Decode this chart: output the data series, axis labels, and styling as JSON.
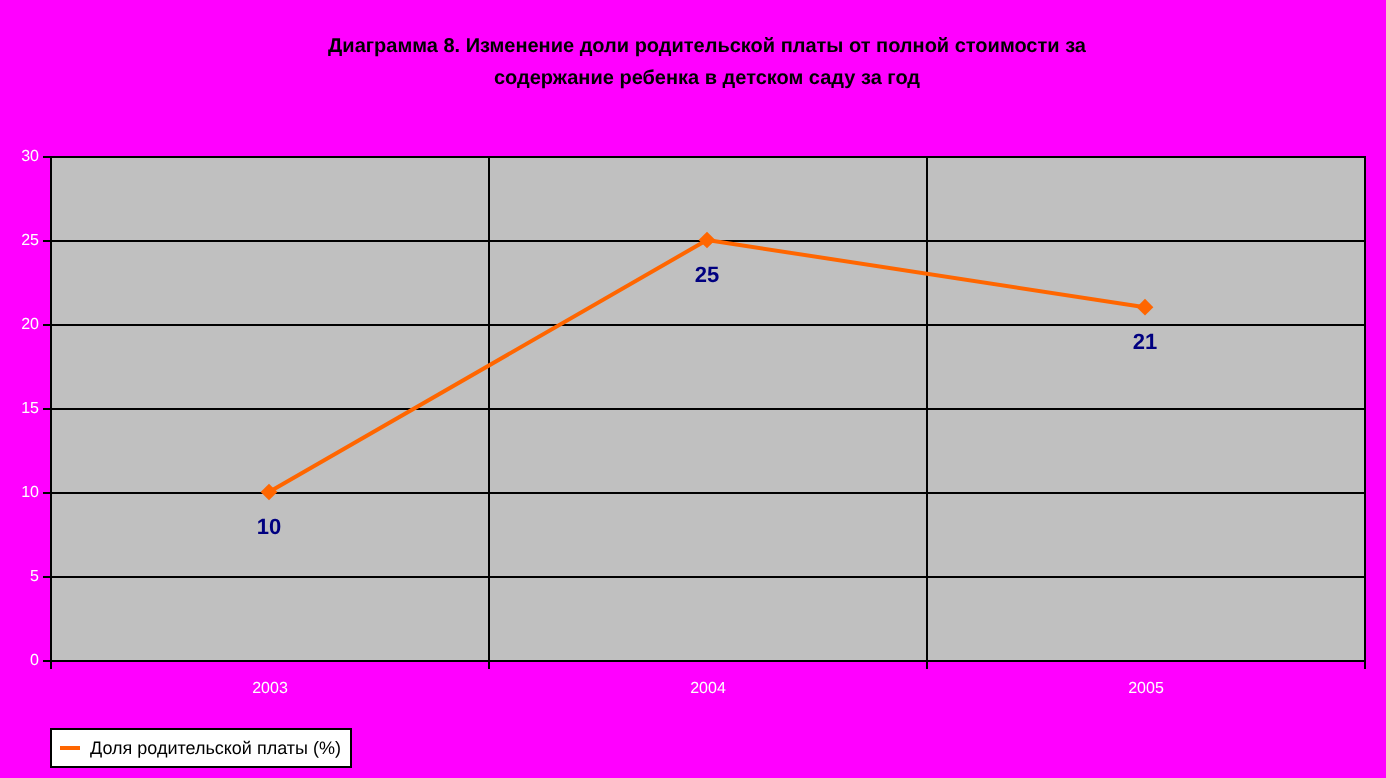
{
  "chart_data": {
    "type": "line",
    "title": "Диаграмма 8. Изменение доли родительской платы от полной стоимости за содержание ребенка в детском саду за год",
    "categories": [
      "2003",
      "2004",
      "2005"
    ],
    "series": [
      {
        "name": "Доля родительской платы (%)",
        "color": "#ff6600",
        "values": [
          10,
          25,
          21
        ]
      }
    ],
    "ylim": [
      0,
      30
    ],
    "yticks": [
      0,
      5,
      10,
      15,
      20,
      25,
      30
    ],
    "grid": true,
    "legend": "bottom",
    "marker": "diamond",
    "line_style": "solid",
    "data_labels": true
  }
}
